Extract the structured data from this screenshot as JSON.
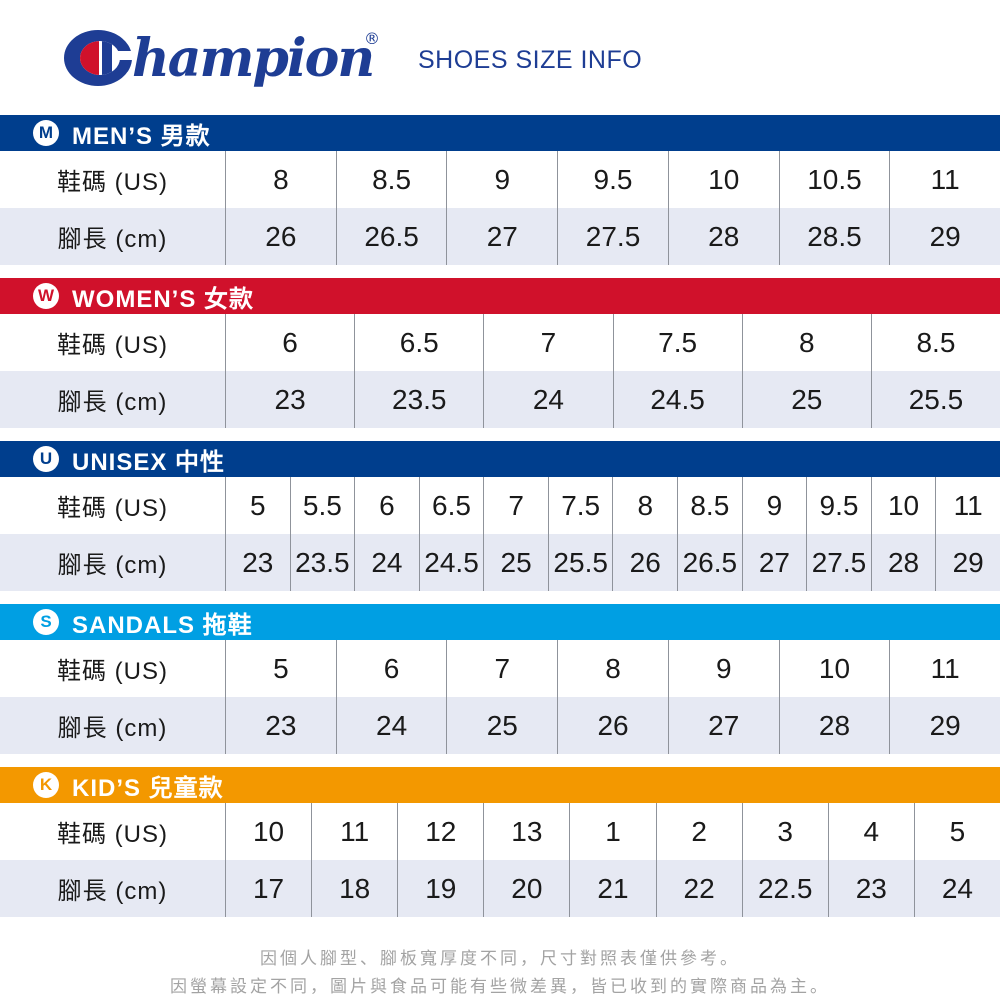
{
  "brand": {
    "logo_text": "Champion",
    "logo_script_part": "hampion",
    "registered_mark": "®",
    "title": "SHOES SIZE INFO",
    "logo_blue": "#1e3d94",
    "logo_red": "#d0112b"
  },
  "sections": [
    {
      "id": "mens",
      "icon_letter": "M",
      "title": "MEN’S 男款",
      "color": "#003e8d",
      "size_label": "鞋碼 (US)",
      "length_label": "腳長 (cm)",
      "us_sizes": [
        "8",
        "8.5",
        "9",
        "9.5",
        "10",
        "10.5",
        "11"
      ],
      "cm_lengths": [
        "26",
        "26.5",
        "27",
        "27.5",
        "28",
        "28.5",
        "29"
      ]
    },
    {
      "id": "womens",
      "icon_letter": "W",
      "title": "WOMEN’S 女款",
      "color": "#d0112b",
      "size_label": "鞋碼 (US)",
      "length_label": "腳長 (cm)",
      "us_sizes": [
        "6",
        "6.5",
        "7",
        "7.5",
        "8",
        "8.5"
      ],
      "cm_lengths": [
        "23",
        "23.5",
        "24",
        "24.5",
        "25",
        "25.5"
      ]
    },
    {
      "id": "unisex",
      "icon_letter": "U",
      "title": "UNISEX 中性",
      "color": "#003e8d",
      "size_label": "鞋碼 (US)",
      "length_label": "腳長 (cm)",
      "us_sizes": [
        "5",
        "5.5",
        "6",
        "6.5",
        "7",
        "7.5",
        "8",
        "8.5",
        "9",
        "9.5",
        "10",
        "11"
      ],
      "cm_lengths": [
        "23",
        "23.5",
        "24",
        "24.5",
        "25",
        "25.5",
        "26",
        "26.5",
        "27",
        "27.5",
        "28",
        "29"
      ]
    },
    {
      "id": "sandals",
      "icon_letter": "S",
      "title": "SANDALS 拖鞋",
      "color": "#009fe3",
      "size_label": "鞋碼 (US)",
      "length_label": "腳長 (cm)",
      "us_sizes": [
        "5",
        "6",
        "7",
        "8",
        "9",
        "10",
        "11"
      ],
      "cm_lengths": [
        "23",
        "24",
        "25",
        "26",
        "27",
        "28",
        "29"
      ]
    },
    {
      "id": "kids",
      "icon_letter": "K",
      "title": "KID’S 兒童款",
      "color": "#f39800",
      "size_label": "鞋碼 (US)",
      "length_label": "腳長 (cm)",
      "us_sizes": [
        "10",
        "11",
        "12",
        "13",
        "1",
        "2",
        "3",
        "4",
        "5"
      ],
      "cm_lengths": [
        "17",
        "18",
        "19",
        "20",
        "21",
        "22",
        "22.5",
        "23",
        "24"
      ]
    }
  ],
  "footer": {
    "line1": "因個人腳型、腳板寬厚度不同，尺寸對照表僅供參考。",
    "line2": "因螢幕設定不同，圖片與食品可能有些微差異，皆已收到的實際商品為主。"
  },
  "colors": {
    "navy": "#003e8d",
    "red": "#d0112b",
    "light_blue": "#009fe3",
    "orange": "#f39800",
    "alt_row_bg": "#e6e9f3",
    "divider_gray": "#8f939b",
    "footer_gray": "#a3a3a3"
  }
}
